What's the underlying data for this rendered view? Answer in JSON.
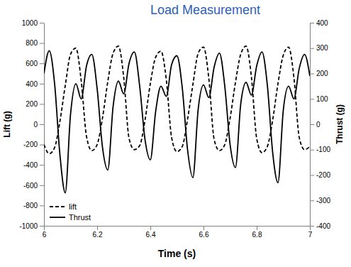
{
  "chart_data": {
    "type": "line",
    "title": "Load Measurement",
    "xlabel": "Time (s)",
    "ylabel": "Lift (g)",
    "y2label": "Thrust (g)",
    "x": [
      6.0,
      6.02,
      6.04,
      6.06,
      6.08,
      6.1,
      6.12,
      6.14,
      6.16,
      6.18,
      6.2,
      6.22,
      6.24,
      6.26,
      6.28,
      6.3,
      6.32,
      6.34,
      6.36,
      6.38,
      6.4,
      6.42,
      6.44,
      6.46,
      6.48,
      6.5,
      6.52,
      6.54,
      6.56,
      6.58,
      6.6,
      6.62,
      6.64,
      6.66,
      6.68,
      6.7,
      6.72,
      6.74,
      6.76,
      6.78,
      6.8,
      6.82,
      6.84,
      6.86,
      6.88,
      6.9,
      6.92,
      6.94,
      6.96,
      6.98,
      7.0
    ],
    "series": [
      {
        "name": "lift",
        "color": "#000000",
        "line_style": "dashed",
        "axis": "y",
        "values": [
          -200,
          -290,
          -230,
          30,
          380,
          690,
          750,
          430,
          -120,
          -260,
          -200,
          60,
          420,
          700,
          770,
          460,
          -140,
          -250,
          -210,
          40,
          400,
          660,
          720,
          440,
          -130,
          -270,
          -220,
          50,
          390,
          700,
          760,
          450,
          -150,
          -260,
          -200,
          60,
          410,
          690,
          770,
          470,
          -140,
          -280,
          -220,
          40,
          400,
          680,
          760,
          460,
          -130,
          -250,
          -220
        ]
      },
      {
        "name": "Thrust",
        "color": "#000000",
        "line_style": "solid",
        "axis": "y2",
        "values": [
          200,
          290,
          160,
          -120,
          -270,
          40,
          160,
          100,
          230,
          275,
          140,
          -90,
          -180,
          70,
          170,
          120,
          240,
          285,
          150,
          -60,
          -140,
          50,
          150,
          110,
          235,
          270,
          145,
          -100,
          -210,
          60,
          155,
          105,
          225,
          280,
          150,
          -80,
          -170,
          80,
          165,
          115,
          230,
          285,
          155,
          -110,
          -230,
          55,
          150,
          100,
          220,
          275,
          190
        ]
      }
    ],
    "xlim": [
      6,
      7
    ],
    "xticks": [
      6,
      6.2,
      6.4,
      6.6,
      6.8,
      7
    ],
    "ylim": [
      -1000,
      1000
    ],
    "yticks": [
      -1000,
      -800,
      -600,
      -400,
      -200,
      0,
      200,
      400,
      600,
      800,
      1000
    ],
    "y2lim": [
      -400,
      400
    ],
    "y2ticks": [
      -400,
      -300,
      -200,
      -100,
      0,
      100,
      200,
      300,
      400
    ],
    "grid": false,
    "legend": "lower left"
  }
}
